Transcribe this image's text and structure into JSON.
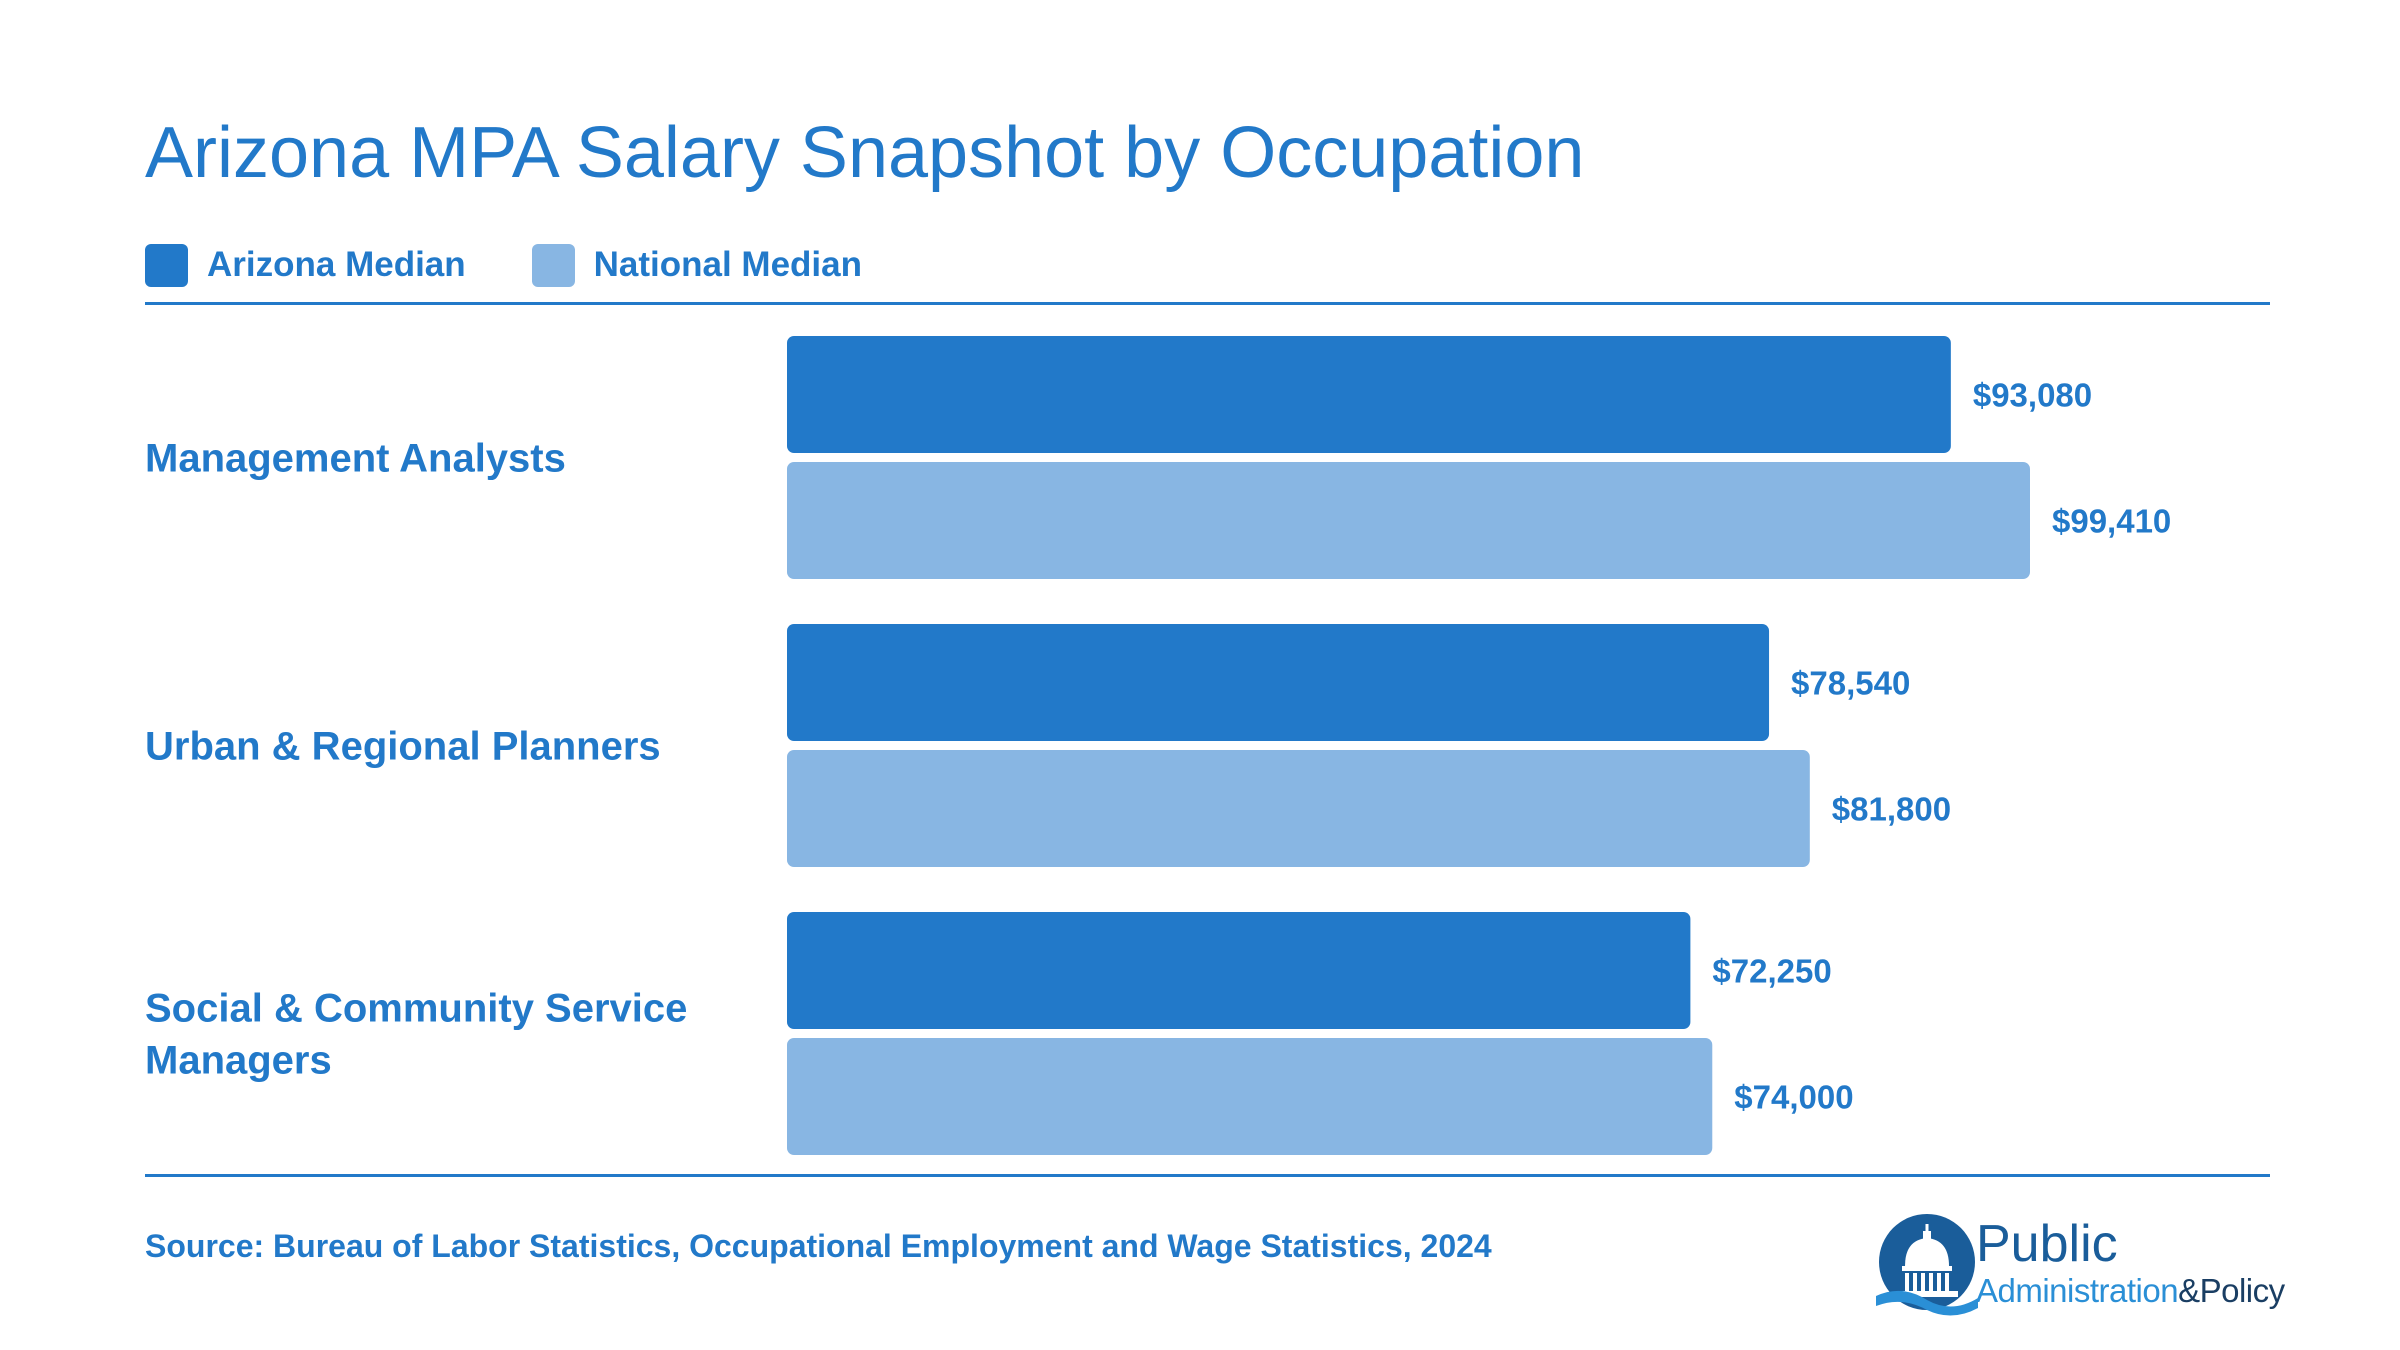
{
  "title": "Arizona MPA Salary Snapshot by Occupation",
  "legend": [
    {
      "label": "Arizona Median",
      "color": "#2279c9"
    },
    {
      "label": "National Median",
      "color": "#88b6e3"
    }
  ],
  "chart_data": {
    "type": "bar",
    "orientation": "horizontal",
    "title": "Arizona MPA Salary Snapshot by Occupation",
    "categories": [
      "Management Analysts",
      "Urban & Regional Planners",
      "Social & Community Service Managers"
    ],
    "series": [
      {
        "name": "Arizona Median",
        "color": "#2279c9",
        "values": [
          93080,
          78540,
          72250
        ],
        "labels": [
          "$93,080",
          "$78,540",
          "$72,250"
        ]
      },
      {
        "name": "National Median",
        "color": "#88b6e3",
        "values": [
          99410,
          81800,
          74000
        ],
        "labels": [
          "$99,410",
          "$81,800",
          "$74,000"
        ]
      }
    ],
    "xlim": [
      0,
      99410
    ],
    "grid": false,
    "legend_position": "top-left"
  },
  "source": "Source: Bureau of Labor Statistics, Occupational Employment and Wage Statistics, 2024",
  "logo": {
    "line1": "Public",
    "line2": "Administration",
    "amp": "&",
    "line3": "Policy",
    "icon": "capitol-dome-icon"
  }
}
